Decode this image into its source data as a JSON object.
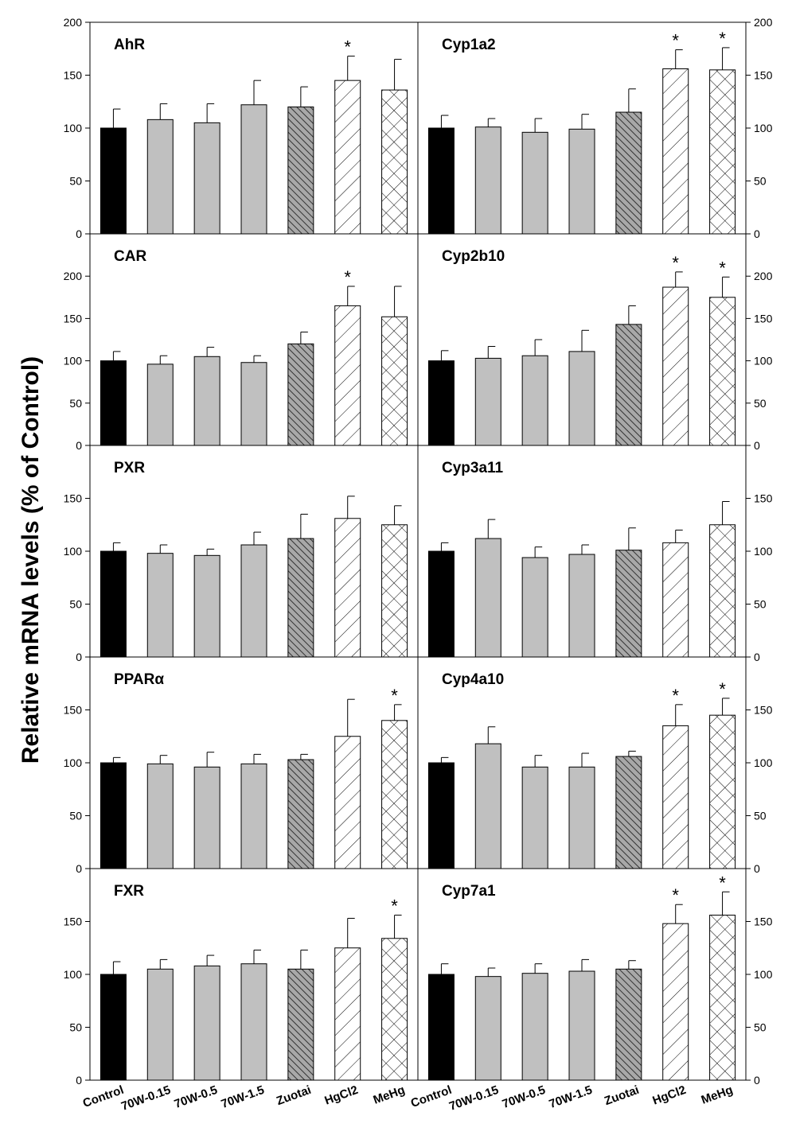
{
  "chart_data": {
    "type": "bar",
    "ylabel": "Relative mRNA levels (% of Control)",
    "categories": [
      "Control",
      "70W-0.15",
      "70W-0.5",
      "70W-1.5",
      "Zuotai",
      "HgCl2",
      "MeHg"
    ],
    "category_styles": [
      {
        "fill": "#000000",
        "pattern": "solid"
      },
      {
        "fill": "#c0c0c0",
        "pattern": "solid"
      },
      {
        "fill": "#c0c0c0",
        "pattern": "solid"
      },
      {
        "fill": "#c0c0c0",
        "pattern": "solid"
      },
      {
        "fill": "#a8a8a8",
        "pattern": "dense-backslash-hatch"
      },
      {
        "fill": "#ffffff",
        "pattern": "slash-hatch"
      },
      {
        "fill": "#ffffff",
        "pattern": "crosshatch"
      }
    ],
    "significance_marker": "*",
    "panels": [
      {
        "title": "AhR",
        "ylim": [
          0,
          200
        ],
        "yticks": [
          0,
          50,
          100,
          150,
          200
        ],
        "values": [
          100,
          108,
          105,
          122,
          120,
          145,
          136
        ],
        "errors": [
          18,
          15,
          18,
          23,
          19,
          23,
          29
        ],
        "significant": [
          false,
          false,
          false,
          false,
          false,
          true,
          false
        ]
      },
      {
        "title": "Cyp1a2",
        "ylim": [
          0,
          200
        ],
        "yticks": [
          0,
          50,
          100,
          150,
          200
        ],
        "values": [
          100,
          101,
          96,
          99,
          115,
          156,
          155
        ],
        "errors": [
          12,
          8,
          13,
          14,
          22,
          18,
          21
        ],
        "significant": [
          false,
          false,
          false,
          false,
          false,
          true,
          true
        ]
      },
      {
        "title": "CAR",
        "ylim": [
          0,
          250
        ],
        "yticks": [
          0,
          50,
          100,
          150,
          200
        ],
        "values": [
          100,
          96,
          105,
          98,
          120,
          165,
          152
        ],
        "errors": [
          11,
          10,
          11,
          8,
          14,
          23,
          36
        ],
        "significant": [
          false,
          false,
          false,
          false,
          false,
          true,
          false
        ]
      },
      {
        "title": "Cyp2b10",
        "ylim": [
          0,
          250
        ],
        "yticks": [
          0,
          50,
          100,
          150,
          200
        ],
        "values": [
          100,
          103,
          106,
          111,
          143,
          187,
          175
        ],
        "errors": [
          12,
          14,
          19,
          25,
          22,
          18,
          24
        ],
        "significant": [
          false,
          false,
          false,
          false,
          false,
          true,
          true
        ]
      },
      {
        "title": "PXR",
        "ylim": [
          0,
          200
        ],
        "yticks": [
          0,
          50,
          100,
          150
        ],
        "values": [
          100,
          98,
          96,
          106,
          112,
          131,
          125
        ],
        "errors": [
          8,
          8,
          6,
          12,
          23,
          21,
          18
        ],
        "significant": [
          false,
          false,
          false,
          false,
          false,
          false,
          false
        ]
      },
      {
        "title": "Cyp3a11",
        "ylim": [
          0,
          200
        ],
        "yticks": [
          0,
          50,
          100,
          150
        ],
        "values": [
          100,
          112,
          94,
          97,
          101,
          108,
          125
        ],
        "errors": [
          8,
          18,
          10,
          9,
          21,
          12,
          22
        ],
        "significant": [
          false,
          false,
          false,
          false,
          false,
          false,
          false
        ]
      },
      {
        "title": "PPARα",
        "ylim": [
          0,
          200
        ],
        "yticks": [
          0,
          50,
          100,
          150
        ],
        "values": [
          100,
          99,
          96,
          99,
          103,
          125,
          140
        ],
        "errors": [
          5,
          8,
          14,
          9,
          5,
          35,
          15
        ],
        "significant": [
          false,
          false,
          false,
          false,
          false,
          false,
          true
        ]
      },
      {
        "title": "Cyp4a10",
        "ylim": [
          0,
          200
        ],
        "yticks": [
          0,
          50,
          100,
          150
        ],
        "values": [
          100,
          118,
          96,
          96,
          106,
          135,
          145
        ],
        "errors": [
          5,
          16,
          11,
          13,
          5,
          20,
          16
        ],
        "significant": [
          false,
          false,
          false,
          false,
          false,
          true,
          true
        ]
      },
      {
        "title": "FXR",
        "ylim": [
          0,
          200
        ],
        "yticks": [
          0,
          50,
          100,
          150
        ],
        "values": [
          100,
          105,
          108,
          110,
          105,
          125,
          134
        ],
        "errors": [
          12,
          9,
          10,
          13,
          18,
          28,
          22
        ],
        "significant": [
          false,
          false,
          false,
          false,
          false,
          false,
          true
        ]
      },
      {
        "title": "Cyp7a1",
        "ylim": [
          0,
          200
        ],
        "yticks": [
          0,
          50,
          100,
          150
        ],
        "values": [
          100,
          98,
          101,
          103,
          105,
          148,
          156
        ],
        "errors": [
          10,
          8,
          9,
          11,
          8,
          18,
          22
        ],
        "significant": [
          false,
          false,
          false,
          false,
          false,
          true,
          true
        ]
      }
    ]
  }
}
